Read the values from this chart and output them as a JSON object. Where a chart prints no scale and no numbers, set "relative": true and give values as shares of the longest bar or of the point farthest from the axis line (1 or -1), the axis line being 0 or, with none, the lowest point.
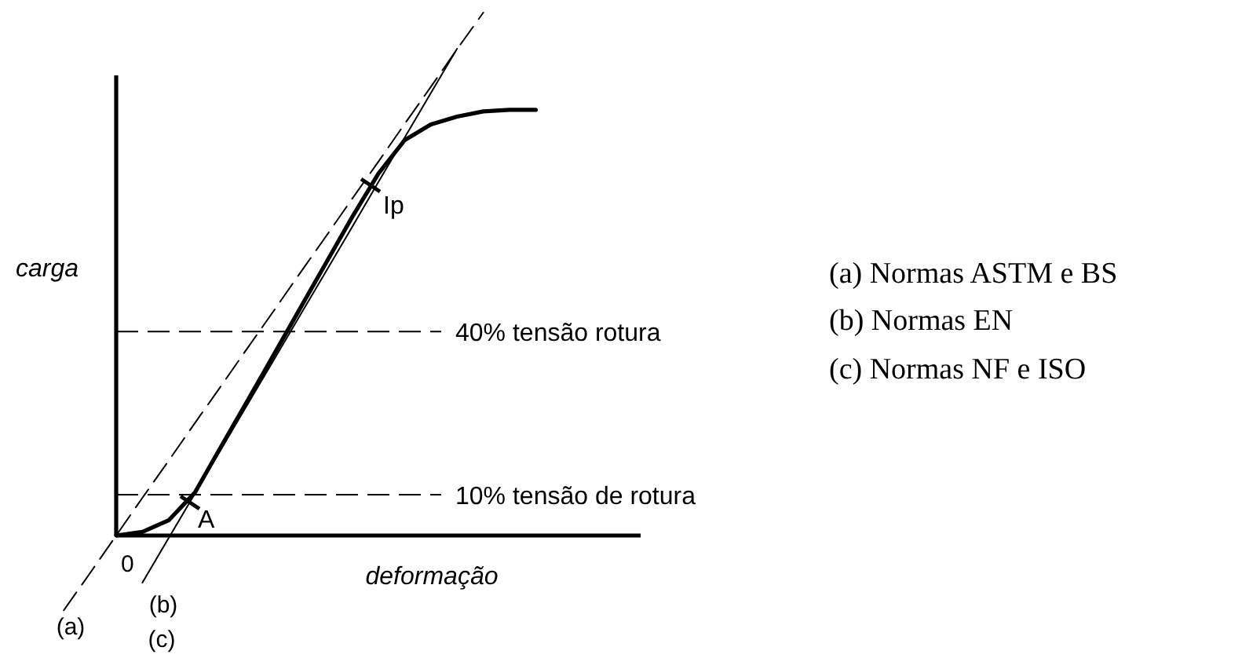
{
  "chart_data": {
    "type": "line",
    "relative": true,
    "xlabel": "deformação",
    "ylabel": "carga",
    "categories": [
      null,
      null,
      null,
      null,
      null,
      null,
      null,
      null,
      null,
      null,
      null,
      null,
      null,
      null,
      null,
      null,
      null,
      null,
      null,
      null,
      null,
      null,
      null
    ],
    "series": [
      {
        "color": "#000000",
        "line_style": "solid",
        "values": [
          null,
          null,
          0,
          0.007,
          0.029,
          0.082,
          0.17,
          0.257,
          0.345,
          0.433,
          0.521,
          0.609,
          0.692,
          0.756,
          0.786,
          0.801,
          0.811,
          0.814,
          0.814,
          null,
          null,
          null,
          null
        ]
      },
      {
        "color": "#000000",
        "line_style": "dashed",
        "values": [
          -0.143,
          -0.072,
          0,
          0.072,
          0.143,
          0.215,
          0.286,
          0.358,
          0.429,
          0.501,
          0.572,
          0.644,
          0.715,
          0.787,
          0.858,
          0.93,
          1,
          null,
          null,
          null,
          null,
          null,
          null
        ]
      },
      {
        "color": "#000000",
        "line_style": "solid",
        "values": [
          null,
          null,
          null,
          -0.09,
          -0.005,
          0.08,
          0.165,
          0.25,
          0.335,
          0.42,
          0.505,
          0.59,
          0.676,
          0.761,
          0.846,
          0.931,
          null,
          null,
          null,
          null,
          null,
          null,
          null
        ]
      }
    ],
    "ref_lines": [
      {
        "axis": "y",
        "value": 0.39,
        "label": "40% tensão rotura",
        "line_style": "dashed",
        "color": "#000000"
      },
      {
        "axis": "y",
        "value": 0.078,
        "label": "10% tensão de rotura",
        "line_style": "dashed",
        "color": "#000000"
      }
    ],
    "annotations": [
      "A",
      "Ip",
      "0",
      "(a)",
      "(b)",
      "(c)",
      "(a) Normas ASTM e BS",
      "(b) Normas EN",
      "(c) Normas NF e ISO"
    ]
  }
}
